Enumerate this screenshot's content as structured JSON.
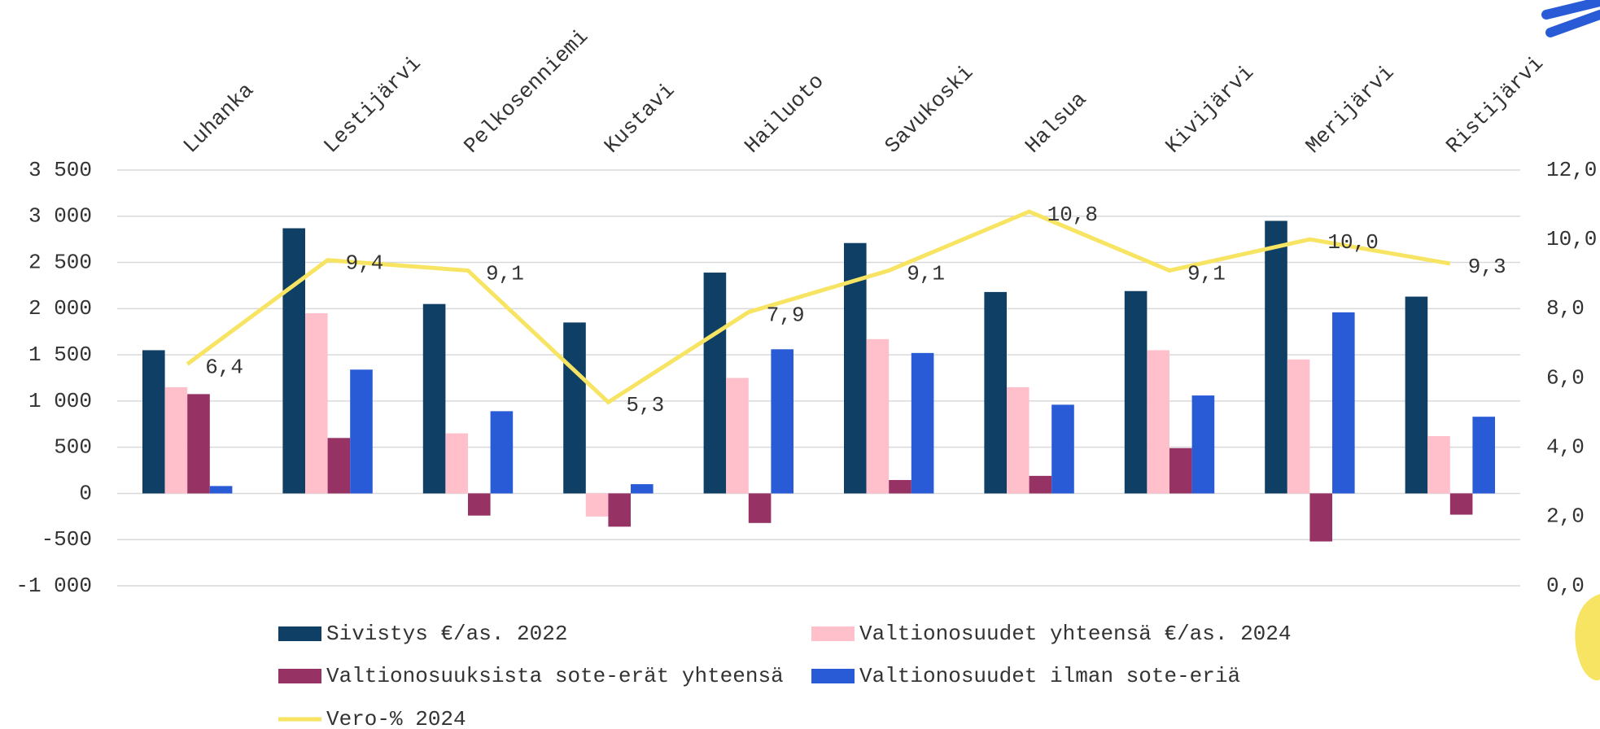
{
  "chart_data": {
    "type": "bar",
    "categories": [
      "Luhanka",
      "Lestijärvi",
      "Pelkosenniemi",
      "Kustavi",
      "Hailuoto",
      "Savukoski",
      "Halsua",
      "Kivijärvi",
      "Merijärvi",
      "Ristijärvi"
    ],
    "series": [
      {
        "name": "Sivistys €/as. 2022",
        "color": "#0f3f64",
        "type": "bar",
        "values": [
          1550,
          2870,
          2050,
          1850,
          2390,
          2710,
          2180,
          2190,
          2950,
          2130
        ]
      },
      {
        "name": "Valtionosuudet yhteensä €/as. 2024",
        "color": "#ffc0cc",
        "type": "bar",
        "values": [
          1150,
          1950,
          650,
          -250,
          1250,
          1670,
          1150,
          1550,
          1450,
          620
        ]
      },
      {
        "name": "Valtionosuuksista sote-erät yhteensä",
        "color": "#963264",
        "type": "bar",
        "values": [
          1075,
          600,
          -240,
          -360,
          -320,
          145,
          190,
          490,
          -520,
          -230
        ]
      },
      {
        "name": "Valtionosuudet ilman sote-eriä",
        "color": "#2a5bd7",
        "type": "bar",
        "values": [
          80,
          1340,
          890,
          100,
          1560,
          1520,
          960,
          1060,
          1960,
          830
        ]
      },
      {
        "name": "Vero-% 2024",
        "color": "#f7e463",
        "type": "line",
        "axis": "y2",
        "values": [
          6.4,
          9.4,
          9.1,
          5.3,
          7.9,
          9.1,
          10.8,
          9.1,
          10.0,
          9.3
        ],
        "value_labels": [
          "6,4",
          "9,4",
          "9,1",
          "5,3",
          "7,9",
          "9,1",
          "10,8",
          "9,1",
          "10,0",
          "9,3"
        ]
      }
    ],
    "ylim": [
      -1000,
      3500
    ],
    "yticks": [
      {
        "value": -1000,
        "label": "-1 000"
      },
      -500,
      0,
      500,
      {
        "value": 1000,
        "label": "1 000"
      },
      {
        "value": 1500,
        "label": "1 500"
      },
      {
        "value": 2000,
        "label": "2 000"
      },
      {
        "value": 2500,
        "label": "2 500"
      },
      {
        "value": 3000,
        "label": "3 000"
      },
      {
        "value": 3500,
        "label": "3 500"
      }
    ],
    "y2lim": [
      0,
      12
    ],
    "y2ticks": [
      {
        "value": 0,
        "label": "0,0"
      },
      {
        "value": 2,
        "label": "2,0"
      },
      {
        "value": 4,
        "label": "4,0"
      },
      {
        "value": 6,
        "label": "6,0"
      },
      {
        "value": 8,
        "label": "8,0"
      },
      {
        "value": 10,
        "label": "10,0"
      },
      {
        "value": 12,
        "label": "12,0"
      }
    ],
    "grid": true
  }
}
